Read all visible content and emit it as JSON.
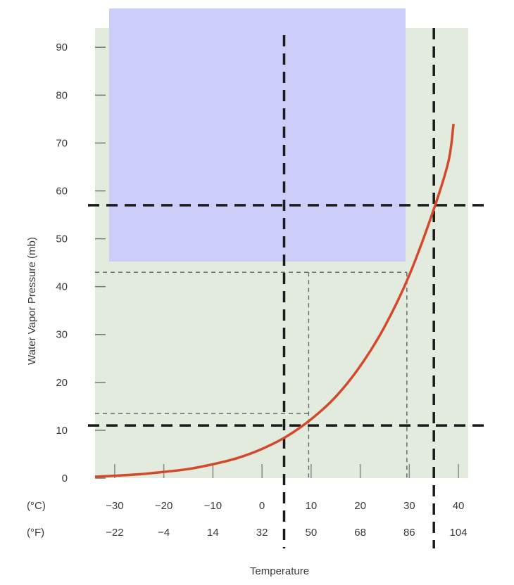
{
  "chart_data": {
    "type": "line",
    "title": "",
    "xlabel": "Temperature",
    "ylabel": "Water Vapor Pressure (mb)",
    "xlim": [
      -34,
      42
    ],
    "ylim": [
      0,
      94
    ],
    "y_ticks": [
      "0",
      "10",
      "20",
      "30",
      "40",
      "50",
      "60",
      "70",
      "80",
      "90"
    ],
    "x_ticks_c": [
      "−30",
      "−20",
      "−10",
      "0",
      "10",
      "20",
      "30",
      "40"
    ],
    "x_ticks_f": [
      "−22",
      "−4",
      "14",
      "32",
      "50",
      "68",
      "86",
      "104"
    ],
    "x_tick_values_c": [
      -30,
      -20,
      -10,
      0,
      10,
      20,
      30,
      40
    ],
    "celsius_label": "(°C)",
    "fahrenheit_label": "(°F)",
    "grid": false,
    "series": [
      {
        "x": [
          -34,
          -30,
          -25,
          -20,
          -15,
          -10,
          -5,
          0,
          5,
          10,
          15,
          20,
          25,
          30,
          35,
          38,
          39
        ],
        "y": [
          0.3,
          0.5,
          0.8,
          1.3,
          1.9,
          2.9,
          4.2,
          6.1,
          8.7,
          12.3,
          17,
          23.4,
          31.7,
          42.4,
          56.2,
          66.3,
          74
        ]
      }
    ],
    "reference_lines": {
      "bold_vertical_c": [
        4.5,
        35
      ],
      "bold_horizontal_mb": [
        11,
        57
      ],
      "thin_vertical_c": [
        9.5,
        29.5
      ],
      "thin_horizontal_mb": [
        13.5,
        43
      ]
    },
    "colors": {
      "plot_background": "#e2ebdd",
      "overlay_box": "#cdcdf9",
      "curve": "#d4492c",
      "dash": "#1a1a1a",
      "thin_dash": "#6a6a6a"
    }
  }
}
